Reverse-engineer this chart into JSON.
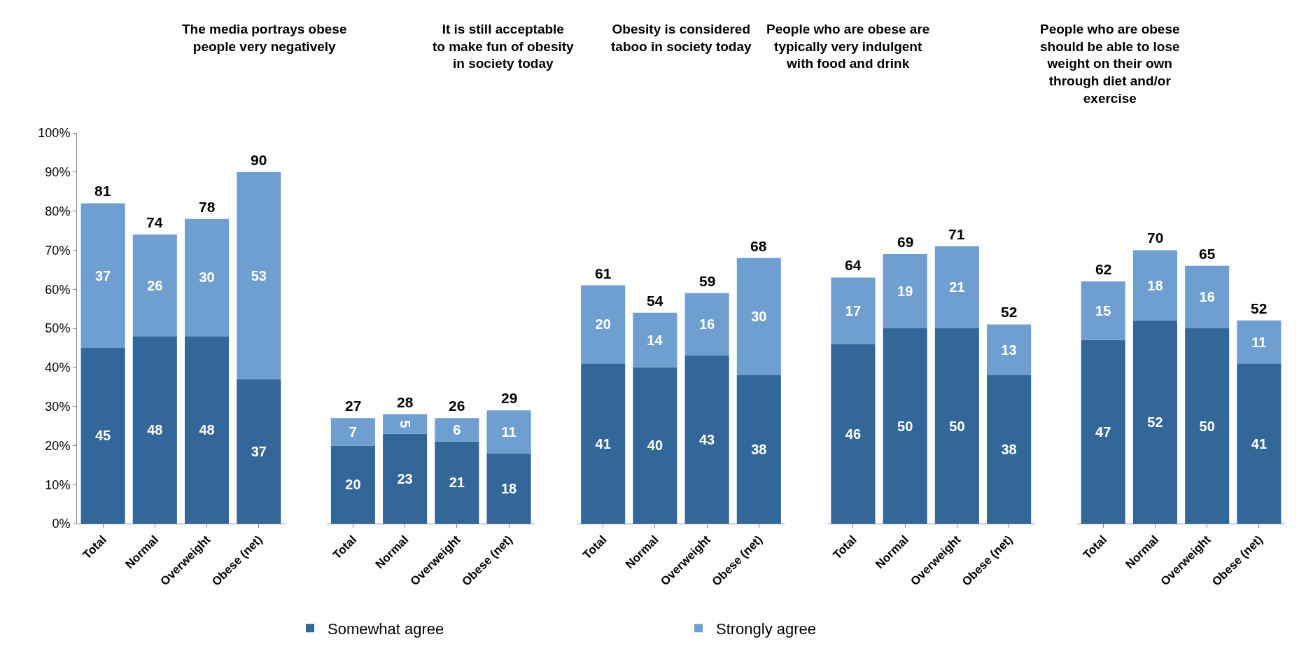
{
  "chart_data": [
    {
      "type": "bar",
      "stacked": true,
      "title": "The media portrays obese people very negatively",
      "categories": [
        "Total",
        "Normal",
        "Overweight",
        "Obese (net)"
      ],
      "series": [
        {
          "name": "Somewhat agree",
          "color": "#336699",
          "values": [
            45,
            48,
            48,
            37
          ]
        },
        {
          "name": "Strongly agree",
          "color": "#6f9fd0",
          "values": [
            37,
            26,
            30,
            53
          ]
        }
      ],
      "totals": [
        "81",
        "74",
        "78",
        "90"
      ],
      "data_labels": true,
      "ylim": [
        0,
        100
      ],
      "yticks": [
        {
          "value": 0,
          "label": "0%"
        },
        {
          "value": 10,
          "label": "10%"
        },
        {
          "value": 20,
          "label": "20%"
        },
        {
          "value": 30,
          "label": "30%"
        },
        {
          "value": 40,
          "label": "40%"
        },
        {
          "value": 50,
          "label": "50%"
        },
        {
          "value": 60,
          "label": "60%"
        },
        {
          "value": 70,
          "label": "70%"
        },
        {
          "value": 80,
          "label": "80%"
        },
        {
          "value": 90,
          "label": "90%"
        },
        {
          "value": 100,
          "label": "100%"
        }
      ],
      "legend": "bottom"
    },
    {
      "type": "bar",
      "stacked": true,
      "title": "It is still acceptable to make fun of obesity in society today",
      "categories": [
        "Total",
        "Normal",
        "Overweight",
        "Obese (net)"
      ],
      "series": [
        {
          "color": "#336699",
          "values": [
            20,
            23,
            21,
            18
          ]
        },
        {
          "color": "#6f9fd0",
          "values": [
            7,
            5,
            6,
            11
          ]
        }
      ],
      "totals": [
        "27",
        "28",
        "26",
        "29"
      ],
      "data_labels": true,
      "ylim": [
        0,
        100
      ],
      "tick_labels": "x"
    },
    {
      "type": "bar",
      "stacked": true,
      "title": "Obesity is considered taboo in society today",
      "categories": [
        "Total",
        "Normal",
        "Overweight",
        "Obese (net)"
      ],
      "series": [
        {
          "color": "#336699",
          "values": [
            41,
            40,
            43,
            38
          ]
        },
        {
          "color": "#6f9fd0",
          "values": [
            20,
            14,
            16,
            30
          ]
        }
      ],
      "totals": [
        "61",
        "54",
        "59",
        "68"
      ],
      "data_labels": true,
      "ylim": [
        0,
        100
      ],
      "tick_labels": "x"
    },
    {
      "type": "bar",
      "stacked": true,
      "title": "People who are obese are typically very indulgent with food and drink",
      "categories": [
        "Total",
        "Normal",
        "Overweight",
        "Obese (net)"
      ],
      "series": [
        {
          "color": "#336699",
          "values": [
            46,
            50,
            50,
            38
          ]
        },
        {
          "color": "#6f9fd0",
          "values": [
            17,
            19,
            21,
            13
          ]
        }
      ],
      "totals": [
        "64",
        "69",
        "71",
        "52"
      ],
      "data_labels": true,
      "ylim": [
        0,
        100
      ],
      "tick_labels": "x"
    },
    {
      "type": "bar",
      "stacked": true,
      "title": "People who are obese should be able to lose weight on their own through diet and/or exercise",
      "categories": [
        "Total",
        "Normal",
        "Overweight",
        "Obese (net)"
      ],
      "series": [
        {
          "color": "#336699",
          "values": [
            47,
            52,
            50,
            41
          ]
        },
        {
          "color": "#6f9fd0",
          "values": [
            15,
            18,
            16,
            11
          ]
        }
      ],
      "totals": [
        "62",
        "70",
        "65",
        "52"
      ],
      "data_labels": true,
      "ylim": [
        0,
        100
      ],
      "tick_labels": "x"
    }
  ]
}
